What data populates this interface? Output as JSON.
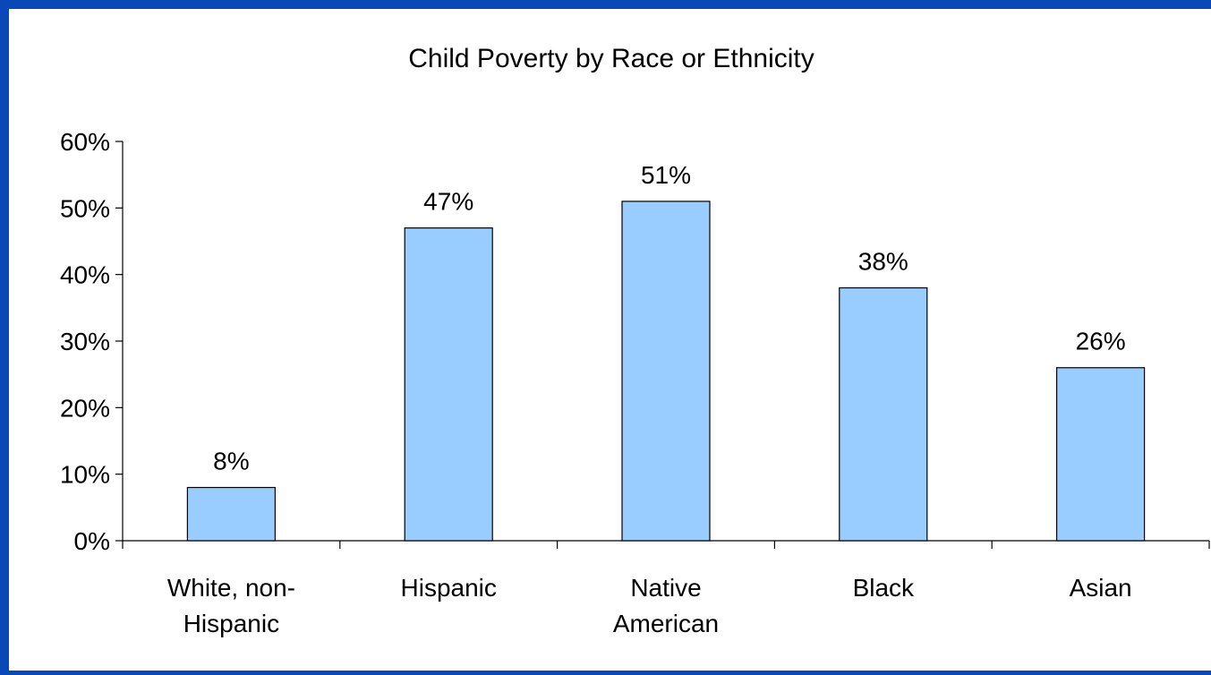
{
  "chart_data": {
    "type": "bar",
    "title": "Child Poverty by Race or Ethnicity",
    "xlabel": "",
    "ylabel": "",
    "categories": [
      "White, non-Hispanic",
      "Hispanic",
      "Native American",
      "Black",
      "Asian"
    ],
    "category_lines": [
      [
        "White, non-",
        "Hispanic"
      ],
      [
        "Hispanic"
      ],
      [
        "Native",
        "American"
      ],
      [
        "Black"
      ],
      [
        "Asian"
      ]
    ],
    "values": [
      8,
      47,
      51,
      38,
      26
    ],
    "data_labels": [
      "8%",
      "47%",
      "51%",
      "38%",
      "26%"
    ],
    "ylim": [
      0,
      60
    ],
    "yticks": [
      0,
      10,
      20,
      30,
      40,
      50,
      60
    ],
    "ytick_labels": [
      "0%",
      "10%",
      "20%",
      "30%",
      "40%",
      "50%",
      "60%"
    ],
    "grid": false,
    "legend": "none",
    "bar_color": "#99ccff",
    "border_color": "#0a48b8"
  }
}
